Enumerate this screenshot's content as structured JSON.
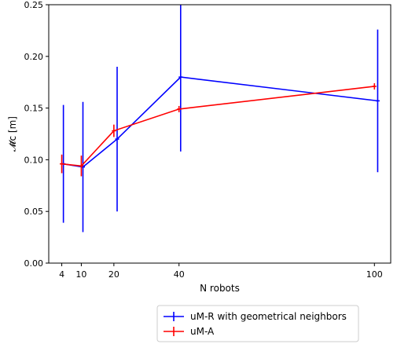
{
  "chart_data": {
    "type": "line",
    "xlabel": "N robots",
    "ylabel": "𝓜̄c   [m]",
    "xlim": [
      0,
      105
    ],
    "ylim": [
      0,
      0.25
    ],
    "xticks": [
      4,
      10,
      20,
      40,
      100
    ],
    "xtick_labels": [
      "4",
      "10",
      "20",
      "40",
      "100"
    ],
    "yticks": [
      0.0,
      0.05,
      0.1,
      0.15,
      0.2,
      0.25
    ],
    "ytick_labels": [
      "0.00",
      "0.05",
      "0.10",
      "0.15",
      "0.20",
      "0.25"
    ],
    "grid": false,
    "legend_position": "below-right",
    "series": [
      {
        "name": "uM-R with geometrical neighbors",
        "color": "#0000ff",
        "x": [
          4.5,
          10.5,
          21,
          40.5,
          101
        ],
        "y": [
          0.096,
          0.093,
          0.12,
          0.18,
          0.157
        ],
        "err": [
          0.057,
          0.063,
          0.07,
          0.072,
          0.069
        ]
      },
      {
        "name": "uM-A",
        "color": "#ff0000",
        "x": [
          4,
          10,
          20,
          40,
          100
        ],
        "y": [
          0.096,
          0.094,
          0.128,
          0.149,
          0.171
        ],
        "err": [
          0.009,
          0.01,
          0.006,
          0.003,
          0.003
        ]
      }
    ]
  }
}
